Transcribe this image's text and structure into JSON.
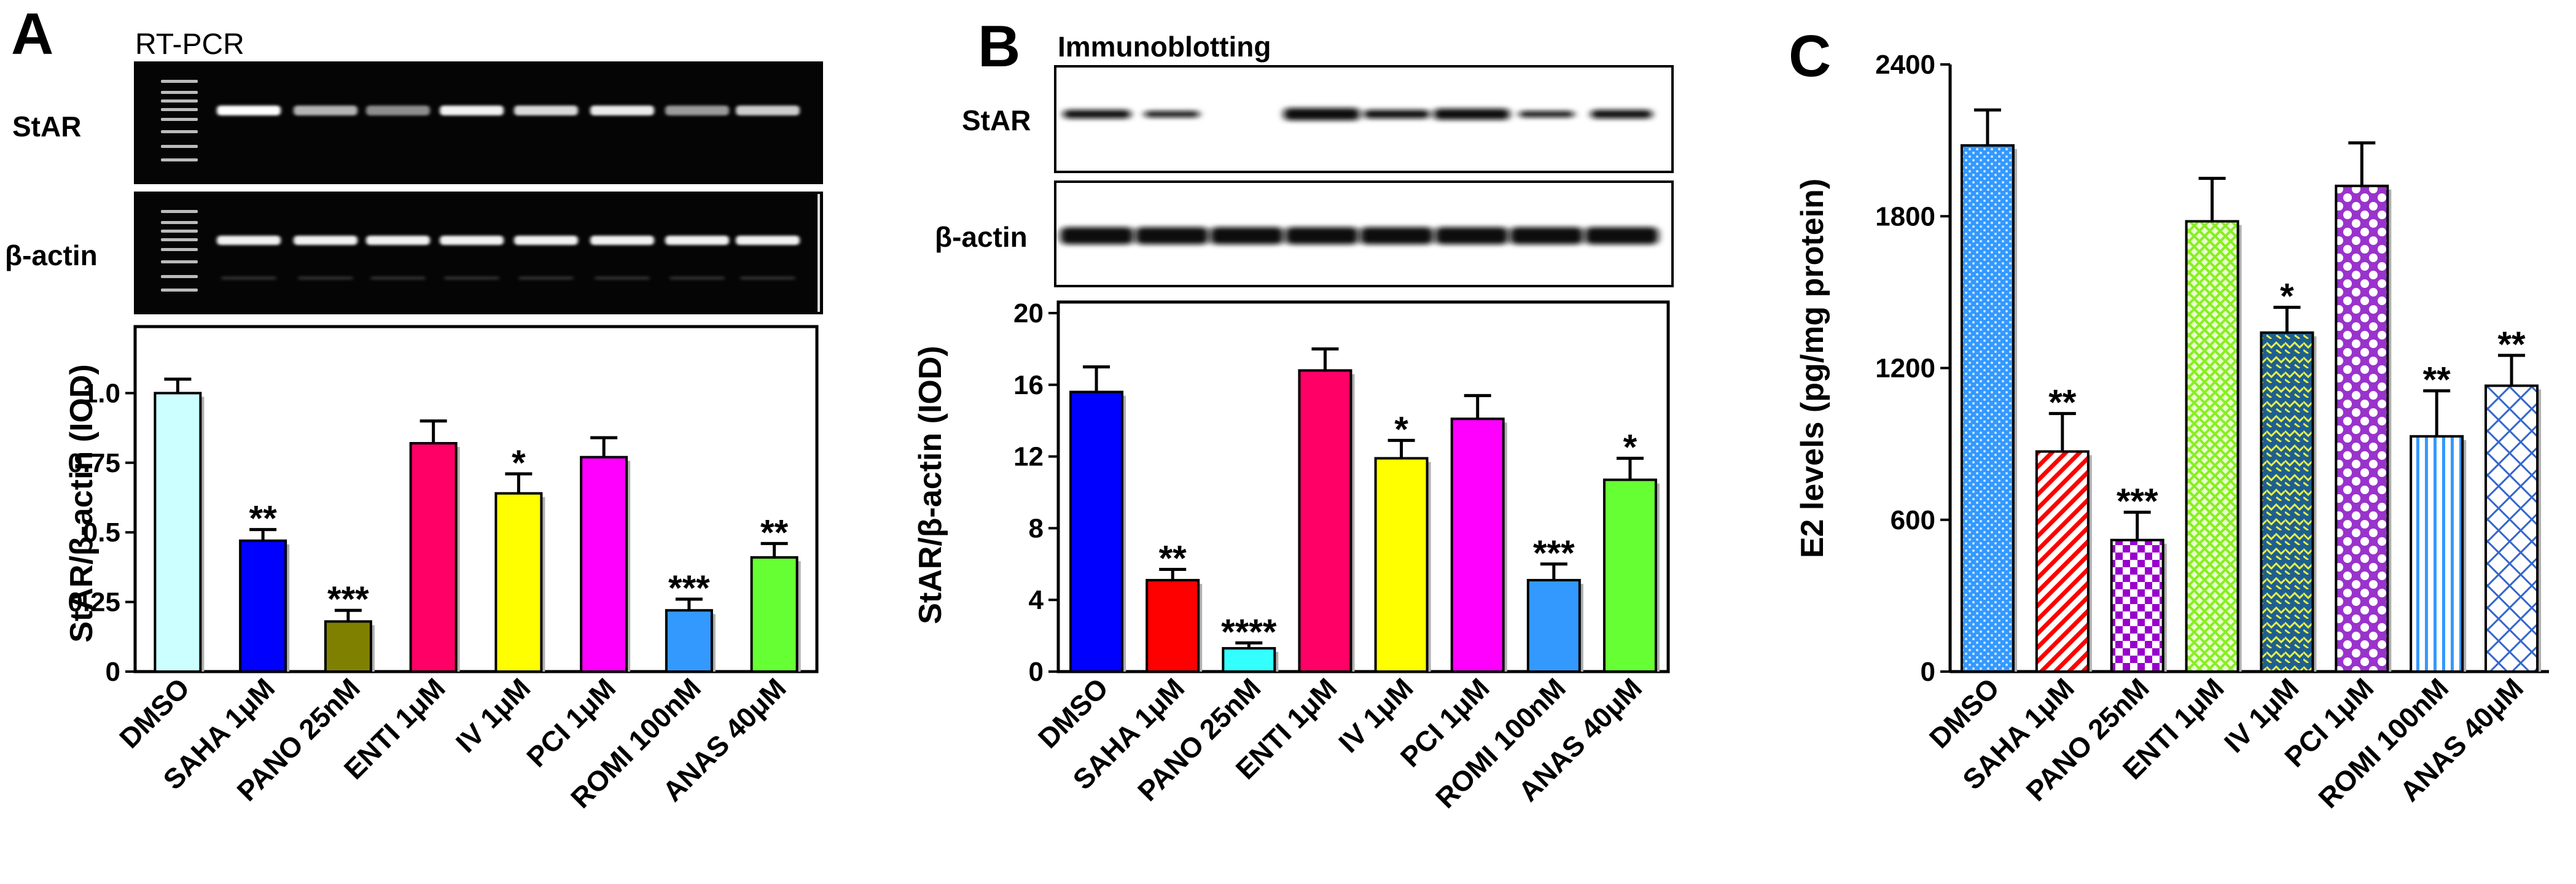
{
  "panels": [
    {
      "id": "A",
      "method": "RT-PCR",
      "band_top": "StAR",
      "band_bottom": "β-actin"
    },
    {
      "id": "B",
      "method": "Immunoblotting",
      "band_top": "StAR",
      "band_bottom": "β-actin"
    },
    {
      "id": "C"
    }
  ],
  "chart_data": [
    {
      "type": "bar",
      "panel": "A",
      "categories": [
        "DMSO",
        "SAHA 1μM",
        "PANO 25nM",
        "ENTI 1μM",
        "IV 1μM",
        "PCI 1μM",
        "ROMI 100nM",
        "ANAS 40μM"
      ],
      "values": [
        1.0,
        0.47,
        0.18,
        0.82,
        0.64,
        0.77,
        0.22,
        0.41
      ],
      "errors": [
        0.05,
        0.04,
        0.04,
        0.08,
        0.07,
        0.07,
        0.04,
        0.05
      ],
      "significance": [
        "",
        "**",
        "***",
        "",
        "*",
        "",
        "***",
        "**"
      ],
      "colors": [
        "#ccffff",
        "#0000ff",
        "#808000",
        "#ff0066",
        "#ffff00",
        "#ff00ff",
        "#3399ff",
        "#66ff33"
      ],
      "patterns": [
        "solid",
        "solid",
        "solid",
        "solid",
        "solid",
        "solid",
        "solid",
        "solid"
      ],
      "ylabel": "StAR/β-actin (IOD)",
      "ylim": [
        0,
        1.1
      ],
      "yticks": [
        0,
        0.25,
        0.5,
        0.75,
        1.0
      ],
      "ytick_labels": [
        "0",
        "0.25",
        "0.5",
        "0.75",
        "1.0"
      ]
    },
    {
      "type": "bar",
      "panel": "B",
      "categories": [
        "DMSO",
        "SAHA 1μM",
        "PANO 25nM",
        "ENTI 1μM",
        "IV 1μM",
        "PCI 1μM",
        "ROMI 100nM",
        "ANAS 40μM"
      ],
      "values": [
        15.6,
        5.1,
        1.3,
        16.8,
        11.9,
        14.1,
        5.1,
        10.7
      ],
      "errors": [
        1.4,
        0.6,
        0.3,
        1.2,
        1.0,
        1.3,
        0.9,
        1.2
      ],
      "significance": [
        "",
        "**",
        "****",
        "",
        "*",
        "",
        "***",
        "*"
      ],
      "colors": [
        "#0000ff",
        "#ff0000",
        "#33ffff",
        "#ff0066",
        "#ffff00",
        "#ff00ff",
        "#3399ff",
        "#66ff33"
      ],
      "patterns": [
        "solid",
        "solid",
        "solid",
        "solid",
        "solid",
        "solid",
        "solid",
        "solid"
      ],
      "ylabel": "StAR/β-actin (IOD)",
      "ylim": [
        0,
        20
      ],
      "yticks": [
        0,
        4,
        8,
        12,
        16,
        20
      ],
      "ytick_labels": [
        "0",
        "4",
        "8",
        "12",
        "16",
        "20"
      ]
    },
    {
      "type": "bar",
      "panel": "C",
      "categories": [
        "DMSO",
        "SAHA 1μM",
        "PANO 25nM",
        "ENTI 1μM",
        "IV 1μM",
        "PCI 1μM",
        "ROMI 100nM",
        "ANAS 40μM"
      ],
      "values": [
        2080,
        870,
        520,
        1780,
        1340,
        1920,
        930,
        1130
      ],
      "errors": [
        140,
        150,
        110,
        170,
        100,
        170,
        180,
        120
      ],
      "significance": [
        "",
        "**",
        "***",
        "",
        "*",
        "",
        "**",
        "**"
      ],
      "colors": [
        "#3399ff",
        "#ff0000",
        "#9900cc",
        "#99ff33",
        "#336699",
        "#9933cc",
        "#3399ff",
        "#3366cc"
      ],
      "patterns": [
        "dots",
        "diag",
        "checker",
        "grid",
        "zigzag",
        "circles",
        "vlines",
        "crosshatch"
      ],
      "ylabel": "E2 levels (pg/mg protein)",
      "ylim": [
        0,
        2400
      ],
      "yticks": [
        0,
        600,
        1200,
        1800,
        2400
      ],
      "ytick_labels": [
        "0",
        "600",
        "1200",
        "1800",
        "2400"
      ]
    }
  ]
}
